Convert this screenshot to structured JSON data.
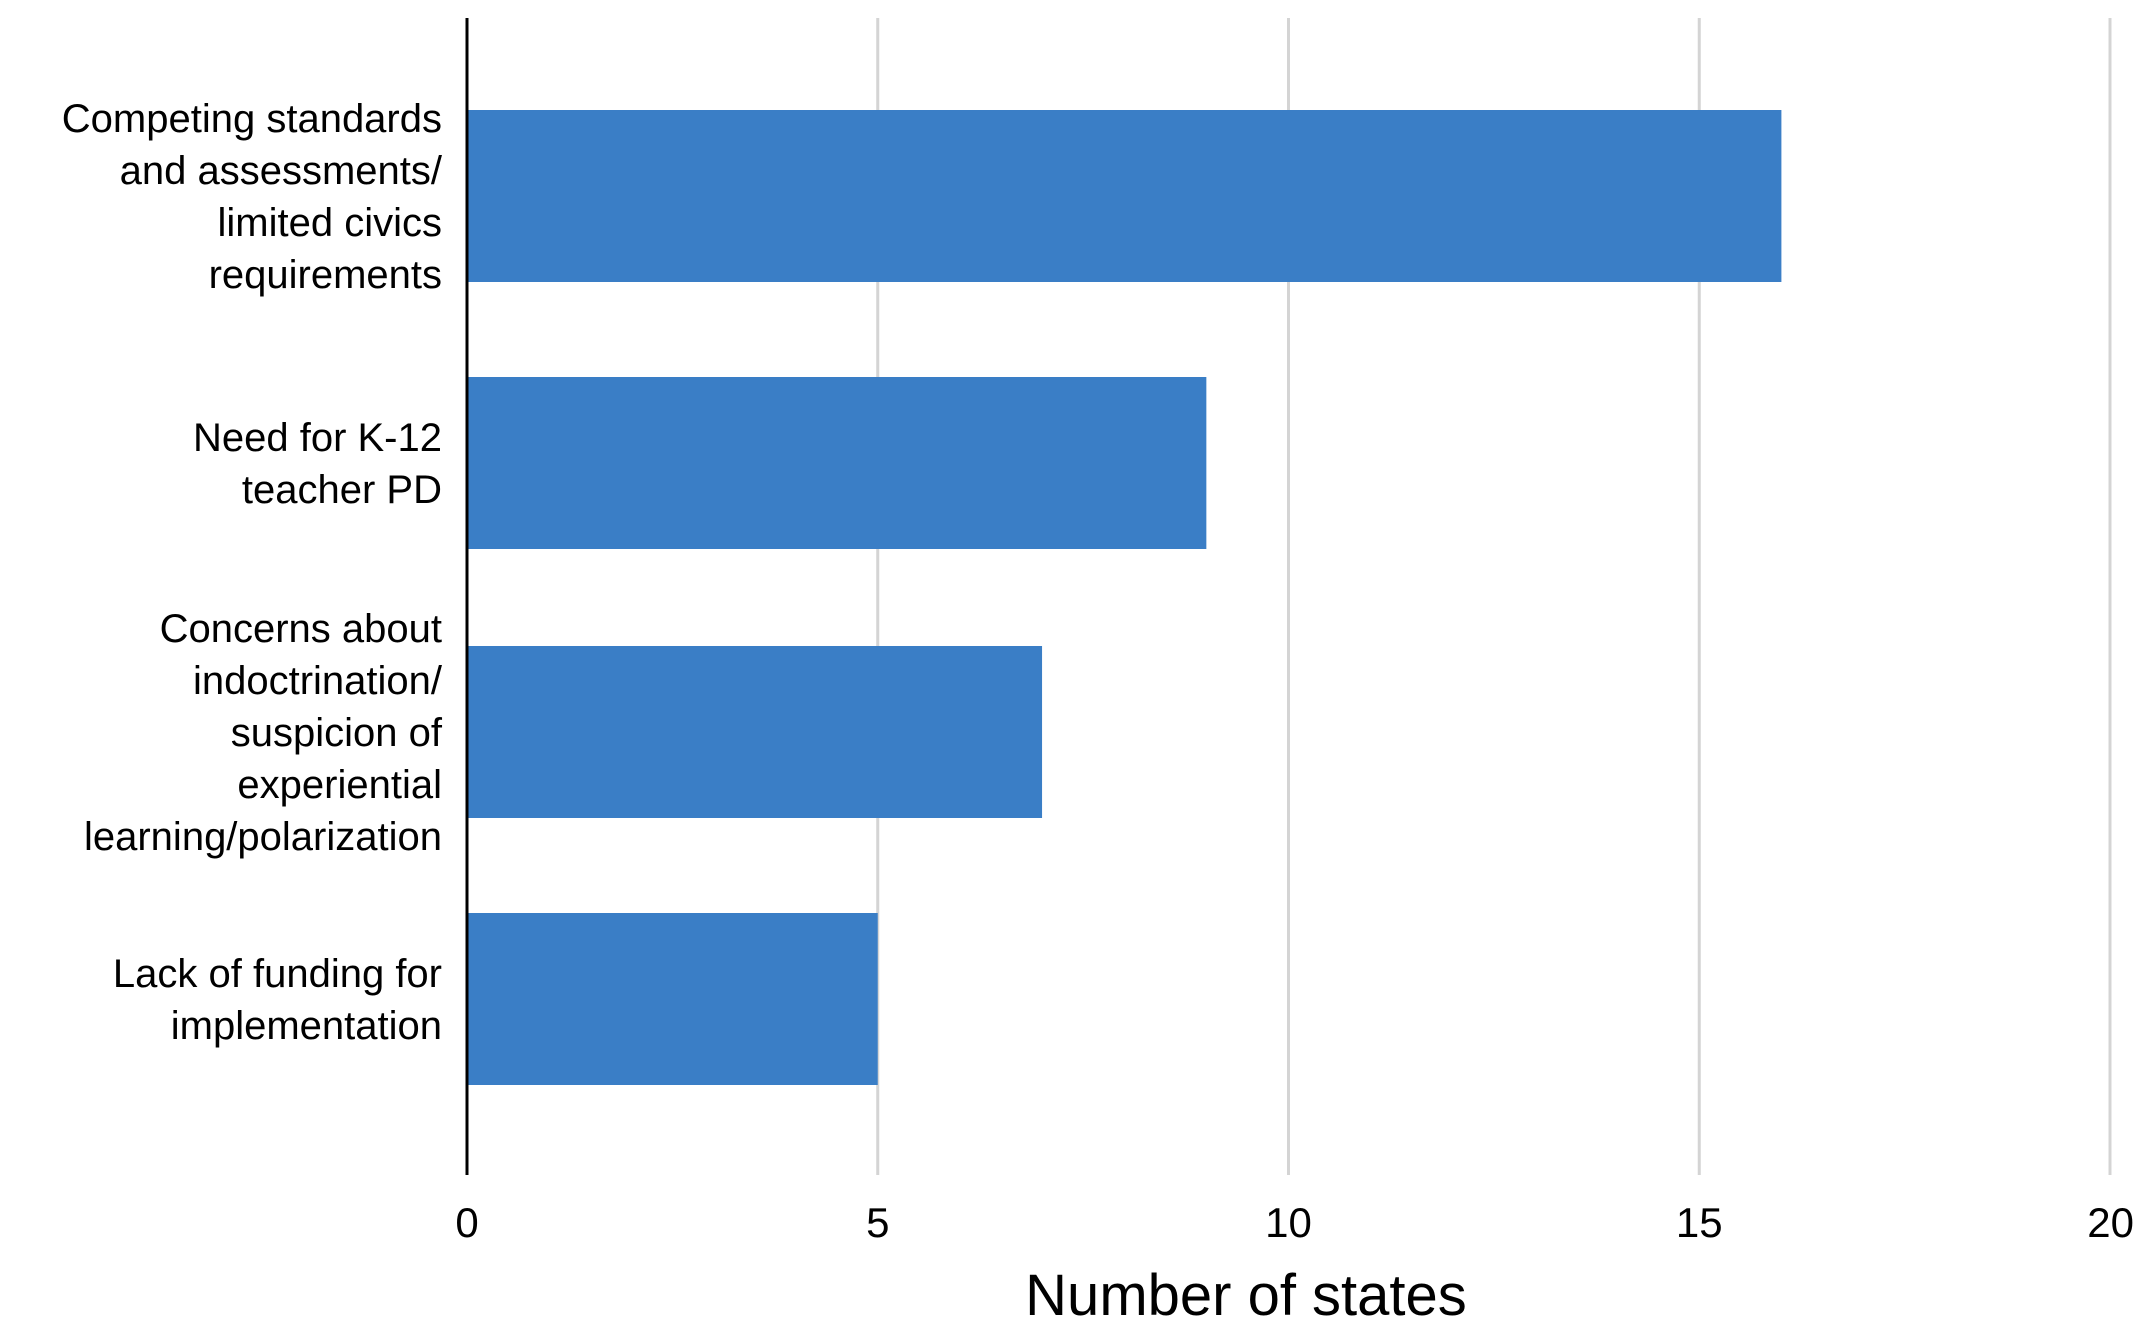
{
  "chart_data": {
    "type": "bar",
    "orientation": "horizontal",
    "title": "",
    "xlabel": "Number of states",
    "ylabel": "",
    "xlim": [
      0,
      20
    ],
    "xticks": [
      0,
      5,
      10,
      15,
      20
    ],
    "grid": "vertical",
    "legend": "none",
    "bar_color": "#3a7ec6",
    "categories": [
      [
        "Competing standards",
        "and assessments/",
        "limited civics",
        "requirements"
      ],
      [
        "Need for K-12",
        "teacher PD"
      ],
      [
        "Concerns about",
        "indoctrination/",
        "suspicion of",
        "experiential",
        "learning/polarization"
      ],
      [
        "Lack of funding for",
        "implementation"
      ]
    ],
    "values": [
      16,
      9,
      7,
      5
    ]
  }
}
